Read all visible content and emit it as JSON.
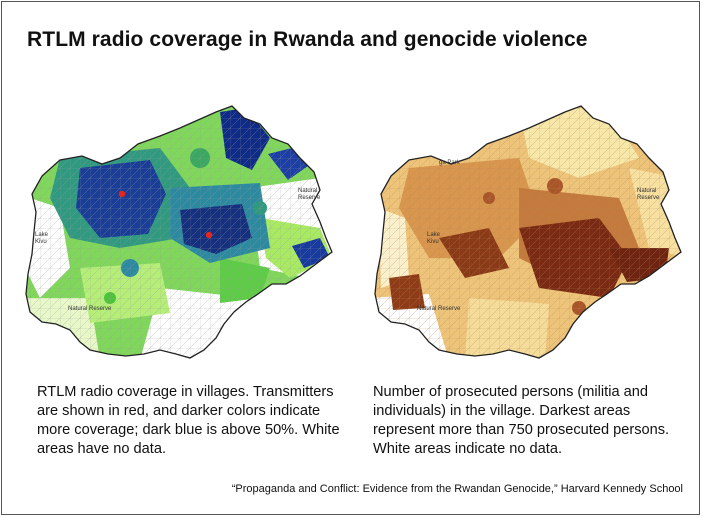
{
  "title": "RTLM radio coverage in Rwanda and genocide violence",
  "left_map": {
    "labels": {
      "lake": "Lake\nKivu",
      "reserve_east": "Natural\nReserve",
      "reserve_southwest": "Natural Reserve"
    },
    "transmitter_color": "#e8251c",
    "coverage_colors": [
      "#ffffff",
      "#c8f28a",
      "#8ee35a",
      "#4cc43a",
      "#2fa46e",
      "#2a7fa0",
      "#1f4fa0",
      "#102a86"
    ]
  },
  "right_map": {
    "labels": {
      "park": "ga Park",
      "lake": "Lake\nKivu",
      "reserve_east": "Natural\nReserve",
      "reserve_southwest": "Natural Reserve"
    },
    "prosecution_colors": [
      "#ffffff",
      "#f7e7a8",
      "#f0cf7a",
      "#e3a85a",
      "#c97a3a",
      "#a8552a",
      "#7a2a12"
    ]
  },
  "captions": {
    "left": "RTLM radio coverage in villages. Transmitters are shown in red, and darker colors indicate more coverage; dark blue is above 50%. White areas have no data.",
    "right": "Number of prosecuted persons (militia and individuals) in the village. Darkest areas represent more than 750 prosecuted persons. White areas indicate no data."
  },
  "source": "“Propaganda and Conflict: Evidence from the Rwandan Genocide,” Harvard Kennedy School"
}
